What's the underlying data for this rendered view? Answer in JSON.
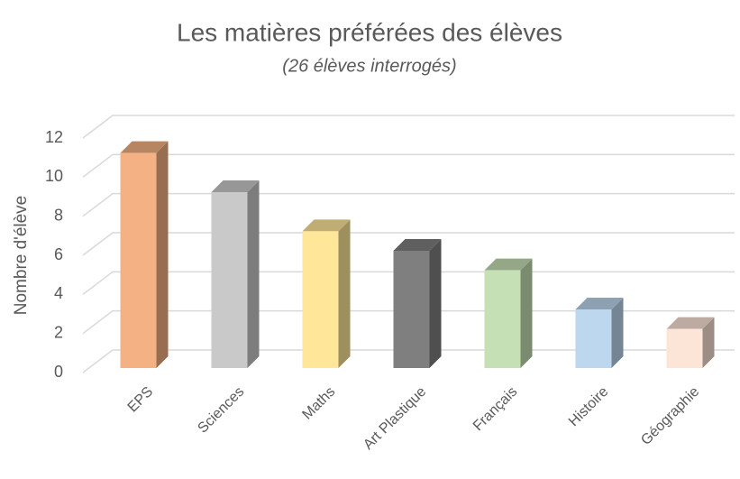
{
  "chart_data": {
    "type": "bar3d",
    "title": "Les matières préférées des élèves",
    "subtitle": "(26 élèves interrogés)",
    "y_label": "Nombre d'élève",
    "categories": [
      "EPS",
      "Sciences",
      "Maths",
      "Art Plastique",
      "Français",
      "Histoire",
      "Géographie"
    ],
    "values": [
      11,
      9,
      7,
      6,
      5,
      3,
      2
    ],
    "colors": [
      "#f4b183",
      "#c9c9c9",
      "#ffe699",
      "#7f7f7f",
      "#c5e0b4",
      "#bdd7ee",
      "#fce4d6"
    ],
    "ylim": [
      0,
      12
    ],
    "yticks": [
      0,
      2,
      4,
      6,
      8,
      10,
      12
    ],
    "grid": true
  }
}
